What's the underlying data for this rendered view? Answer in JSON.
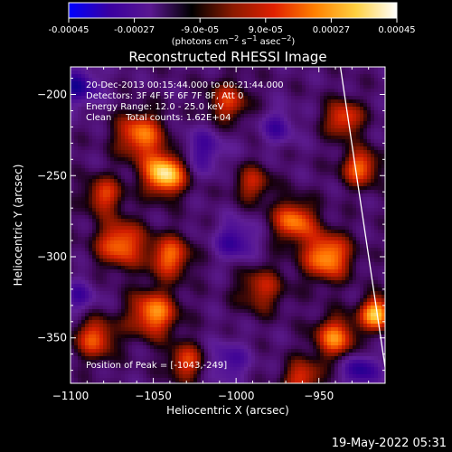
{
  "colorbar": {
    "ticks": [
      "-0.00045",
      "-0.00027",
      "-9.0e-05",
      "9.0e-05",
      "0.00027",
      "0.00045"
    ],
    "tick_values": [
      -0.00045,
      -0.00027,
      -9e-05,
      9e-05,
      0.00027,
      0.00045
    ],
    "range": [
      -0.00045,
      0.00045
    ],
    "units_html": "(photons cm<tspan dy=\"-4\" font-size=\"8\">−2</tspan><tspan dy=\"4\"> s</tspan><tspan dy=\"-4\" font-size=\"8\">−1</tspan><tspan dy=\"4\"> asec</tspan><tspan dy=\"-4\" font-size=\"8\">−2</tspan><tspan dy=\"4\">)</tspan>",
    "units_text": "(photons cm-2 s-1 asec-2)",
    "colors": [
      "#0000ff",
      "#3a00a0",
      "#5a1890",
      "#000000",
      "#8a1a00",
      "#e02000",
      "#ff8000",
      "#ffd040",
      "#ffffff"
    ]
  },
  "chart_data": {
    "type": "heatmap",
    "title": "Reconstructed RHESSI Image",
    "xlabel": "Heliocentric X (arcsec)",
    "ylabel": "Heliocentric Y (arcsec)",
    "xlim": [
      -1100,
      -910
    ],
    "ylim": [
      -378,
      -183
    ],
    "x_ticks": [
      -1100,
      -1050,
      -1000,
      -950
    ],
    "y_ticks": [
      -200,
      -250,
      -300,
      -350
    ],
    "x_tick_labels": [
      "−1100",
      "−1050",
      "−1000",
      "−950"
    ],
    "y_tick_labels": [
      "−200",
      "−250",
      "−300",
      "−350"
    ],
    "annotations": [
      "20-Dec-2013 00:15:44.000 to 00:21:44.000",
      "Detectors: 3F 4F 5F 6F 7F 8F, Att 0",
      "Energy Range: 12.0 - 25.0 keV",
      "Clean     Total counts: 1.62E+04"
    ],
    "peak_label": "Position of Peak = [-1043,-249]",
    "peak": [
      -1043,
      -249
    ],
    "limb_line": [
      [
        -937,
        -183
      ],
      [
        -910,
        -368
      ]
    ],
    "hotspots": [
      {
        "x": -1043,
        "y": -249,
        "sigma": 9,
        "amp": 1.0
      },
      {
        "x": -1058,
        "y": -225,
        "sigma": 10,
        "amp": 0.7
      },
      {
        "x": -1080,
        "y": -262,
        "sigma": 8,
        "amp": 0.55
      },
      {
        "x": -1070,
        "y": -292,
        "sigma": 10,
        "amp": 0.7
      },
      {
        "x": -1040,
        "y": -300,
        "sigma": 9,
        "amp": 0.65
      },
      {
        "x": -1050,
        "y": -335,
        "sigma": 10,
        "amp": 0.75
      },
      {
        "x": -1085,
        "y": -350,
        "sigma": 9,
        "amp": 0.6
      },
      {
        "x": -1030,
        "y": -365,
        "sigma": 8,
        "amp": 0.55
      },
      {
        "x": -1005,
        "y": -205,
        "sigma": 9,
        "amp": 0.5
      },
      {
        "x": -990,
        "y": -255,
        "sigma": 8,
        "amp": 0.45
      },
      {
        "x": -985,
        "y": -320,
        "sigma": 10,
        "amp": 0.45
      },
      {
        "x": -965,
        "y": -278,
        "sigma": 9,
        "amp": 0.7
      },
      {
        "x": -945,
        "y": -300,
        "sigma": 10,
        "amp": 0.8
      },
      {
        "x": -935,
        "y": -215,
        "sigma": 8,
        "amp": 0.6
      },
      {
        "x": -925,
        "y": -245,
        "sigma": 8,
        "amp": 0.65
      },
      {
        "x": -940,
        "y": -350,
        "sigma": 9,
        "amp": 0.7
      },
      {
        "x": -915,
        "y": -335,
        "sigma": 7,
        "amp": 0.9
      },
      {
        "x": -960,
        "y": -375,
        "sigma": 8,
        "amp": 0.55
      }
    ],
    "coldspots": [
      {
        "x": -1095,
        "y": -195,
        "sigma": 9,
        "amp": 0.8
      },
      {
        "x": -1020,
        "y": -235,
        "sigma": 10,
        "amp": 0.6
      },
      {
        "x": -1000,
        "y": -290,
        "sigma": 9,
        "amp": 0.7
      },
      {
        "x": -975,
        "y": -220,
        "sigma": 8,
        "amp": 0.55
      },
      {
        "x": -1005,
        "y": -365,
        "sigma": 9,
        "amp": 0.6
      },
      {
        "x": -925,
        "y": -370,
        "sigma": 8,
        "amp": 0.8
      },
      {
        "x": -1095,
        "y": -325,
        "sigma": 8,
        "amp": 0.55
      }
    ]
  },
  "footer": {
    "timestamp": "19-May-2022 05:31"
  }
}
